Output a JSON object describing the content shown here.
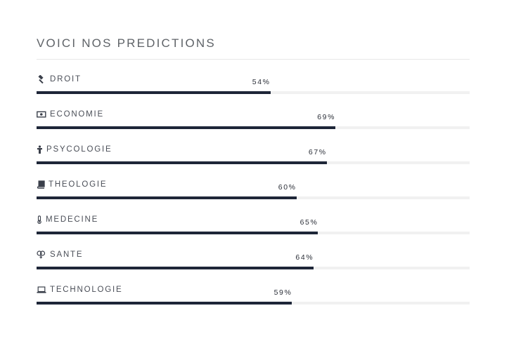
{
  "section": {
    "title": "VOICI NOS PREDICTIONS"
  },
  "skills": [
    {
      "label": "DROIT",
      "percent_text": "54%",
      "value": 0.54,
      "icon": "gavel-icon"
    },
    {
      "label": "ECONOMIE",
      "percent_text": "69%",
      "value": 0.69,
      "icon": "money-bill-icon"
    },
    {
      "label": "PSYCOLOGIE",
      "percent_text": "67%",
      "value": 0.67,
      "icon": "person-icon"
    },
    {
      "label": "THEOLOGIE",
      "percent_text": "60%",
      "value": 0.6,
      "icon": "book-icon"
    },
    {
      "label": "MEDECINE",
      "percent_text": "65%",
      "value": 0.65,
      "icon": "thermometer-icon"
    },
    {
      "label": "SANTE",
      "percent_text": "64%",
      "value": 0.64,
      "icon": "venus-mars-icon"
    },
    {
      "label": "TECHNOLOGIE",
      "percent_text": "59%",
      "value": 0.59,
      "icon": "laptop-icon"
    }
  ],
  "colors": {
    "bar_fill": "#1e2638",
    "bar_track": "#f1f1f1",
    "title": "#5f6368",
    "label": "#4a4e57"
  }
}
